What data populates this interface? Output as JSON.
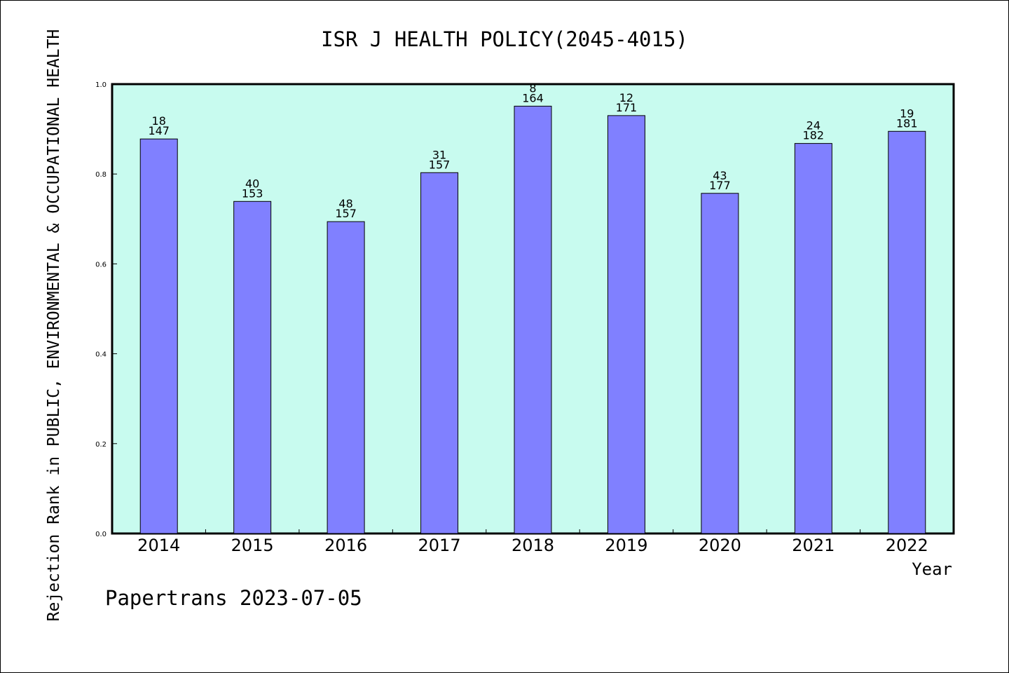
{
  "chart_data": {
    "type": "bar",
    "title": "ISR J HEALTH POLICY(2045-4015)",
    "ylabel": "Rejection Rank in PUBLIC, ENVIRONMENTAL & OCCUPATIONAL HEALTH",
    "xlabel": "Year",
    "categories": [
      "2014",
      "2015",
      "2016",
      "2017",
      "2018",
      "2019",
      "2020",
      "2021",
      "2022"
    ],
    "values": [
      0.878,
      0.739,
      0.694,
      0.803,
      0.951,
      0.93,
      0.757,
      0.868,
      0.895
    ],
    "data_labels": [
      [
        "18",
        "147"
      ],
      [
        "40",
        "153"
      ],
      [
        "48",
        "157"
      ],
      [
        "31",
        "157"
      ],
      [
        "8",
        "164"
      ],
      [
        "12",
        "171"
      ],
      [
        "43",
        "177"
      ],
      [
        "24",
        "182"
      ],
      [
        "19",
        "181"
      ]
    ],
    "ylim": [
      0,
      1.0
    ],
    "yticks": [
      "0.0",
      "0.2",
      "0.4",
      "0.6",
      "0.8",
      "1.0"
    ],
    "ytick_values": [
      0,
      0.2,
      0.4,
      0.6,
      0.8,
      1.0
    ],
    "grid": false,
    "footer": "Papertrans 2023-07-05",
    "colors": {
      "plot_background": "#c8fbef",
      "bar_fill": "#8080ff",
      "bar_stroke": "#000000",
      "axis": "#000000"
    }
  }
}
